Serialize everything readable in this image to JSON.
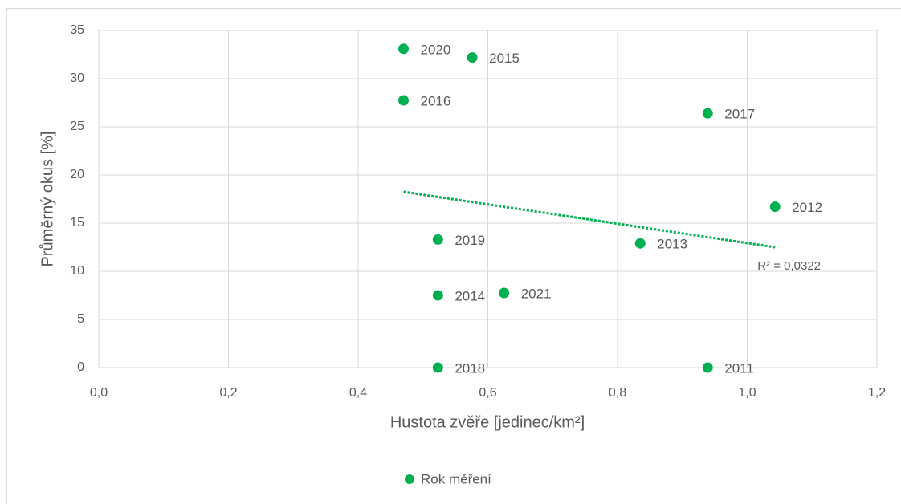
{
  "chart_data": {
    "type": "scatter",
    "xlabel": "Hustota zvěře [jedinec/km²]",
    "ylabel": "Průměrný okus [%]",
    "xlim": [
      0,
      1.2
    ],
    "ylim": [
      0,
      35
    ],
    "xticks": [
      {
        "value": 0,
        "label": "0,0"
      },
      {
        "value": 0.2,
        "label": "0,2"
      },
      {
        "value": 0.4,
        "label": "0,4"
      },
      {
        "value": 0.6,
        "label": "0,6"
      },
      {
        "value": 0.8,
        "label": "0,8"
      },
      {
        "value": 1.0,
        "label": "1,0"
      },
      {
        "value": 1.2,
        "label": "1,2"
      }
    ],
    "yticks": [
      0,
      5,
      10,
      15,
      20,
      25,
      30,
      35
    ],
    "grid": true,
    "legend": "bottom",
    "series": [
      {
        "name": "Rok měření",
        "color": "#00b050",
        "x": [
          0.47,
          0.576,
          0.47,
          0.939,
          1.043,
          0.523,
          0.835,
          0.523,
          0.625,
          0.523,
          0.939
        ],
        "values": [
          33.1,
          32.2,
          27.75,
          26.4,
          16.7,
          13.3,
          12.9,
          7.5,
          7.75,
          0,
          0
        ],
        "labels": [
          "2020",
          "2015",
          "2016",
          "2017",
          "2012",
          "2019",
          "2013",
          "2014",
          "2021",
          "2018",
          "2011"
        ]
      }
    ],
    "trendline": {
      "x": [
        0.47,
        1.043
      ],
      "values": [
        18.25,
        12.5
      ],
      "label": "R² = 0,0322",
      "color": "#00b050"
    }
  }
}
